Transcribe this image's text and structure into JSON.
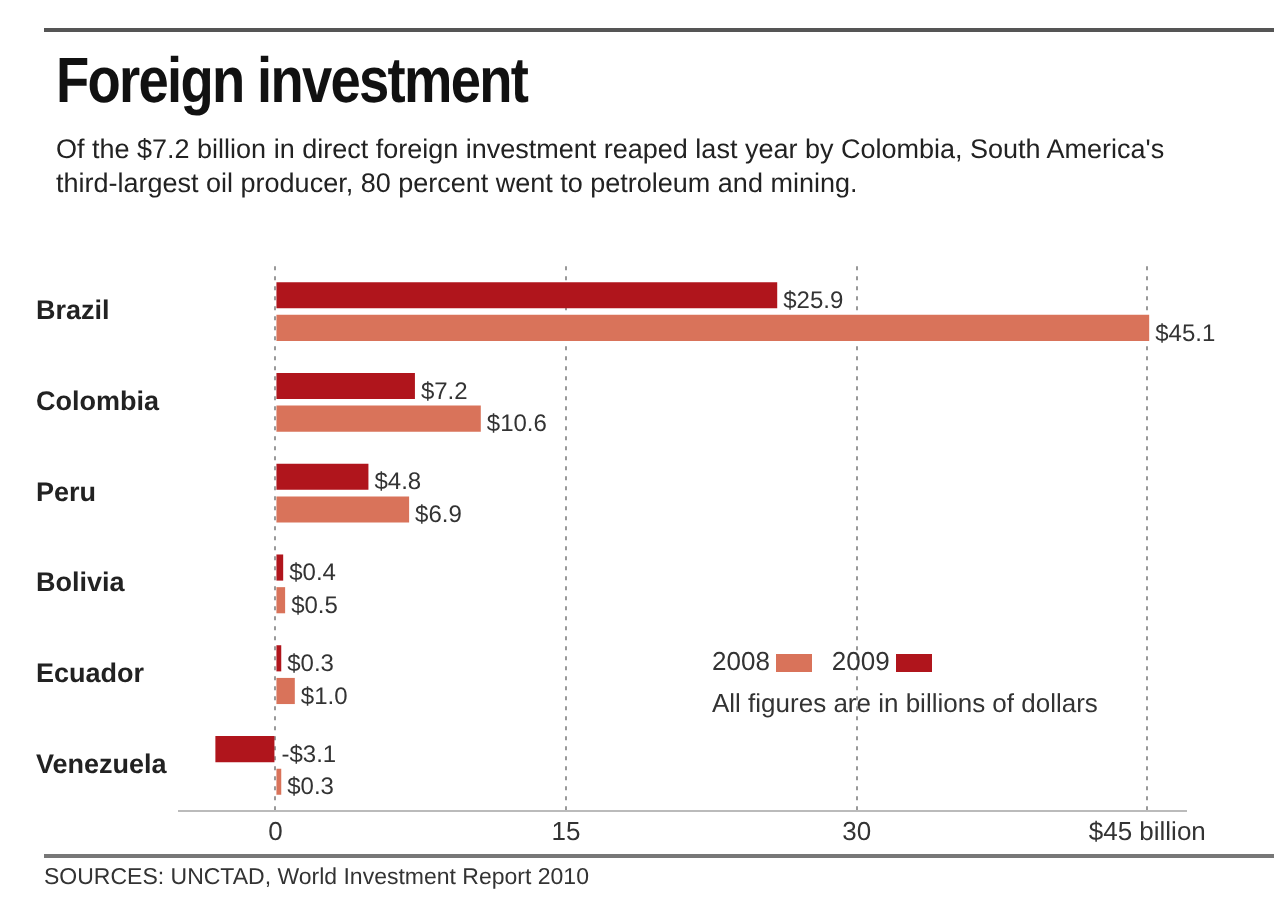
{
  "chart_data": {
    "type": "bar",
    "orientation": "horizontal",
    "title": "Foreign investment",
    "subtitle": "Of the $7.2 billion in direct foreign investment reaped last year by Colombia, South America's third-largest oil producer, 80 percent went to petroleum and mining.",
    "categories": [
      "Brazil",
      "Colombia",
      "Peru",
      "Bolivia",
      "Ecuador",
      "Venezuela"
    ],
    "series": [
      {
        "name": "2009",
        "color": "#b0151c",
        "values": [
          25.9,
          7.2,
          4.8,
          0.4,
          0.3,
          -3.1
        ],
        "value_labels": [
          "$25.9",
          "$7.2",
          "$4.8",
          "$0.4",
          "$0.3",
          "-$3.1"
        ]
      },
      {
        "name": "2008",
        "color": "#d9735a",
        "values": [
          45.1,
          10.6,
          6.9,
          0.5,
          1.0,
          0.3
        ],
        "value_labels": [
          "$45.1",
          "$10.6",
          "$6.9",
          "$0.5",
          "$1.0",
          "$0.3"
        ]
      }
    ],
    "xlim": [
      -5,
      47
    ],
    "xticks": [
      0,
      15,
      30,
      {
        "value": 45,
        "label": "$45 billion"
      }
    ],
    "grid": "x",
    "legend": "bottom right",
    "annotations": [
      "All figures are in billions of dollars",
      "SOURCES: UNCTAD, World Investment Report 2010"
    ]
  }
}
